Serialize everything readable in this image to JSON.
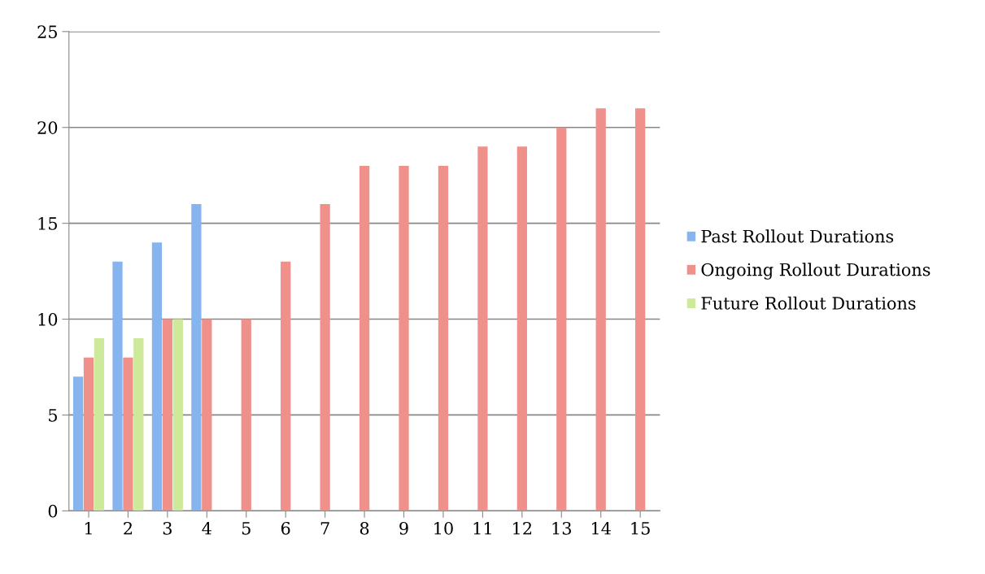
{
  "chart_data": {
    "type": "bar",
    "categories": [
      "1",
      "2",
      "3",
      "4",
      "5",
      "6",
      "7",
      "8",
      "9",
      "10",
      "11",
      "12",
      "13",
      "14",
      "15"
    ],
    "series": [
      {
        "name": "Past Rollout Durations",
        "color": "#86b4ee",
        "values": [
          7,
          13,
          14,
          16,
          null,
          null,
          null,
          null,
          null,
          null,
          null,
          null,
          null,
          null,
          null
        ]
      },
      {
        "name": "Ongoing Rollout Durations",
        "color": "#f0908a",
        "values": [
          8,
          8,
          10,
          10,
          10,
          13,
          16,
          18,
          18,
          18,
          19,
          19,
          20,
          21,
          21
        ]
      },
      {
        "name": "Future Rollout Durations",
        "color": "#cde99a",
        "values": [
          9,
          9,
          10,
          null,
          null,
          null,
          null,
          null,
          null,
          null,
          null,
          null,
          null,
          null,
          null
        ]
      }
    ],
    "ylim": [
      0,
      25
    ],
    "yticks": [
      0,
      5,
      10,
      15,
      20,
      25
    ],
    "grid": "y",
    "legend": "right"
  }
}
